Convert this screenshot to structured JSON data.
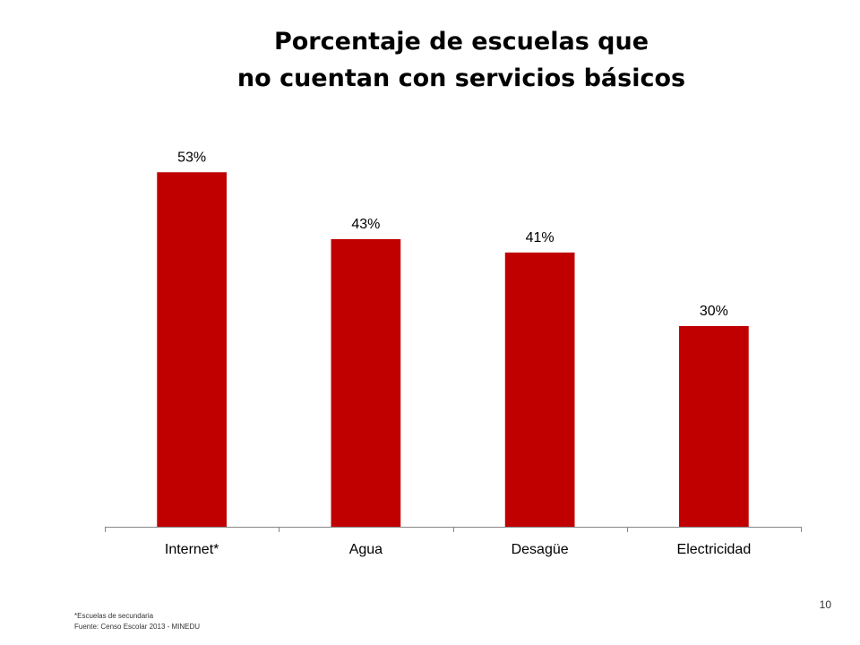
{
  "slide": {
    "title_line1": "Porcentaje de escuelas que",
    "title_line2": "no cuentan con servicios básicos",
    "page_number": "10"
  },
  "footnotes": {
    "note": "*Escuelas de secundaria",
    "source": "Fuente: Censo Escolar 2013 - MINEDU"
  },
  "colors": {
    "bar": "#c00000",
    "axis": "#868686",
    "text": "#000000"
  },
  "chart_data": {
    "type": "bar",
    "title": "Porcentaje de escuelas que no cuentan con servicios básicos",
    "categories": [
      "Internet*",
      "Agua",
      "Desagüe",
      "Electricidad"
    ],
    "values": [
      53,
      43,
      41,
      30
    ],
    "data_labels": [
      "53%",
      "43%",
      "41%",
      "30%"
    ],
    "unit": "%",
    "ylim": [
      0,
      60
    ],
    "grid": false,
    "legend": "none",
    "xlabel": "",
    "ylabel": ""
  }
}
